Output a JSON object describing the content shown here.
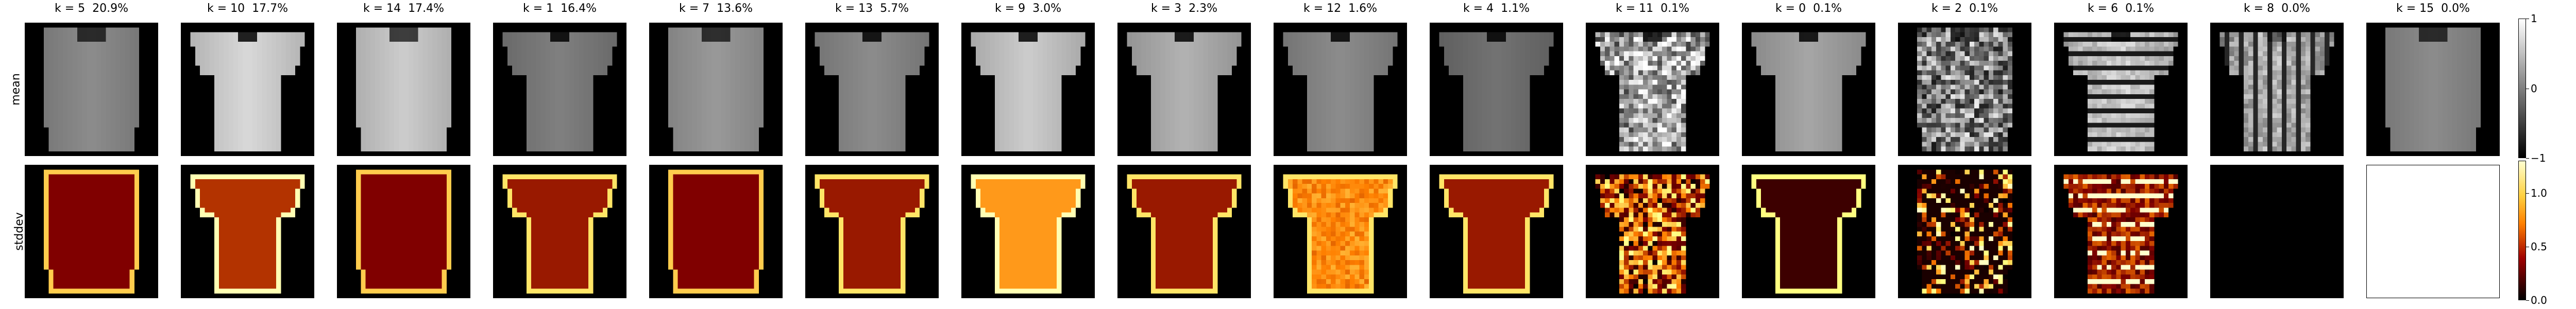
{
  "rows": [
    {
      "label": "mean"
    },
    {
      "label": "stddev"
    }
  ],
  "clusters": [
    {
      "k": "k = 5",
      "pct": "20.9%",
      "shape": "longsleeve",
      "mean": 0.55,
      "texture": "smooth",
      "std": "long"
    },
    {
      "k": "k = 10",
      "pct": "17.7%",
      "shape": "tshirt",
      "mean": 0.85,
      "texture": "smooth",
      "std": "short_bright"
    },
    {
      "k": "k = 14",
      "pct": "17.4%",
      "shape": "longsleeve",
      "mean": 0.8,
      "texture": "smooth",
      "std": "long"
    },
    {
      "k": "k = 1",
      "pct": "16.4%",
      "shape": "tshirt",
      "mean": 0.5,
      "texture": "smooth",
      "std": "short"
    },
    {
      "k": "k = 7",
      "pct": "13.6%",
      "shape": "longsleeve",
      "mean": 0.6,
      "texture": "smooth",
      "std": "long"
    },
    {
      "k": "k = 13",
      "pct": "5.7%",
      "shape": "tshirt",
      "mean": 0.55,
      "texture": "smooth",
      "std": "short"
    },
    {
      "k": "k = 9",
      "pct": "3.0%",
      "shape": "tshirt",
      "mean": 0.8,
      "texture": "smooth",
      "std": "bright"
    },
    {
      "k": "k = 3",
      "pct": "2.3%",
      "shape": "tshirt",
      "mean": 0.7,
      "texture": "smooth",
      "std": "short"
    },
    {
      "k": "k = 12",
      "pct": "1.6%",
      "shape": "tshirt",
      "mean": 0.55,
      "texture": "smooth",
      "std": "box"
    },
    {
      "k": "k = 4",
      "pct": "1.1%",
      "shape": "tshirt",
      "mean": 0.45,
      "texture": "smooth",
      "std": "short"
    },
    {
      "k": "k = 11",
      "pct": "0.1%",
      "shape": "tshirt",
      "mean": 0.7,
      "texture": "noisy",
      "std": "noisy"
    },
    {
      "k": "k = 0",
      "pct": "0.1%",
      "shape": "tshirt",
      "mean": 0.65,
      "texture": "smooth",
      "std": "outline"
    },
    {
      "k": "k = 2",
      "pct": "0.1%",
      "shape": "longsleeve",
      "mean": 0.55,
      "texture": "noisy",
      "std": "noisy_sparse"
    },
    {
      "k": "k = 6",
      "pct": "0.1%",
      "shape": "tshirt",
      "mean": 0.8,
      "texture": "stripes",
      "std": "stripes"
    },
    {
      "k": "k = 8",
      "pct": "0.0%",
      "shape": "shirt",
      "mean": 0.7,
      "texture": "vstripes",
      "std": "zero"
    },
    {
      "k": "k = 15",
      "pct": "0.0%",
      "shape": "longsleeve",
      "mean": 0.55,
      "texture": "smooth",
      "std": "white"
    }
  ],
  "colorbars": {
    "mean": {
      "ticks": [
        "1",
        "0",
        "−1"
      ],
      "min": -1,
      "max": 1,
      "colormap": "gray"
    },
    "stddev": {
      "ticks": [
        "1.0",
        "0.5",
        "0.0"
      ],
      "min": 0,
      "max": 1.3,
      "colormap": "afmhot"
    }
  }
}
